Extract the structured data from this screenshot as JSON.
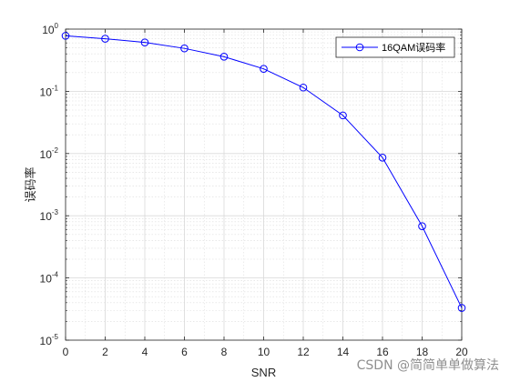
{
  "chart_data": {
    "type": "line",
    "title": "",
    "xlabel": "SNR",
    "ylabel": "误码率",
    "xlim": [
      0,
      20
    ],
    "ylim": [
      1e-05,
      1
    ],
    "yscale": "log",
    "grid": true,
    "minor_grid": true,
    "x_ticks": [
      "0",
      "2",
      "4",
      "6",
      "8",
      "10",
      "12",
      "14",
      "16",
      "18",
      "20"
    ],
    "y_tick_base": "10",
    "y_tick_exponents": [
      "-5",
      "-4",
      "-3",
      "-2",
      "-1",
      "0"
    ],
    "legend_position": "top-right",
    "series": [
      {
        "name": "16QAM误码率",
        "color": "#0000ff",
        "marker": "circle",
        "x": [
          0,
          2,
          4,
          6,
          8,
          10,
          12,
          14,
          16,
          18,
          20
        ],
        "y": [
          0.78,
          0.7,
          0.61,
          0.49,
          0.36,
          0.23,
          0.115,
          0.041,
          0.0086,
          0.00068,
          3.3e-05
        ]
      }
    ]
  },
  "watermark": "CSDN @简简单单做算法"
}
